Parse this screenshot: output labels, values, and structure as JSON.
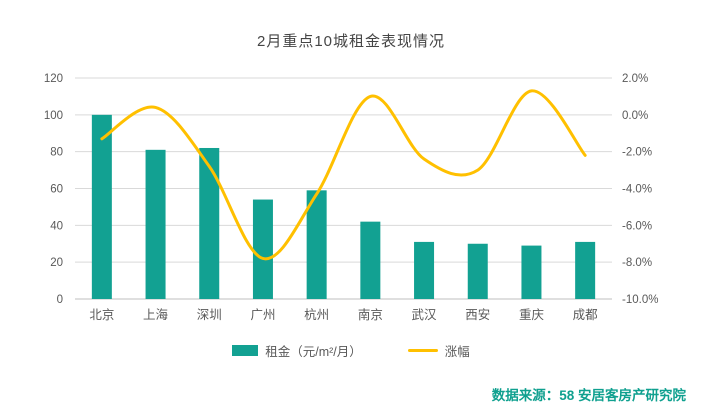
{
  "title": "2月重点10城租金表现情况",
  "legend": {
    "bar_label": "租金（元/m²/月）",
    "line_label": "涨幅"
  },
  "footer": {
    "source": "数据来源：58 安居客房产研究院"
  },
  "colors": {
    "bar": "#12A192",
    "line": "#FFC000",
    "grid": "#D9D9D9",
    "axis_line": "#BFBFBF",
    "tick_text": "#595959",
    "title_text": "#454545",
    "source_text": "#0FA08F"
  },
  "chart_data": {
    "type": "bar",
    "subtype": "combo-bar-line",
    "title": "2月重点10城租金表现情况",
    "categories": [
      "北京",
      "上海",
      "深圳",
      "广州",
      "杭州",
      "南京",
      "武汉",
      "西安",
      "重庆",
      "成都"
    ],
    "series": [
      {
        "name": "租金（元/m²/月）",
        "type": "bar",
        "axis": "left",
        "values": [
          100,
          81,
          82,
          54,
          59,
          42,
          31,
          30,
          29,
          31
        ]
      },
      {
        "name": "涨幅",
        "type": "line",
        "axis": "right",
        "values": [
          -1.3,
          0.4,
          -2.8,
          -7.8,
          -4.3,
          1.0,
          -2.4,
          -3.0,
          1.3,
          -2.2
        ]
      }
    ],
    "left_axis": {
      "min": 0,
      "max": 120,
      "step": 20,
      "ticks": [
        "0",
        "20",
        "40",
        "60",
        "80",
        "100",
        "120"
      ]
    },
    "right_axis": {
      "min": -10,
      "max": 2,
      "step": 2,
      "format": "percent",
      "ticks": [
        "-10.0%",
        "-8.0%",
        "-6.0%",
        "-4.0%",
        "-2.0%",
        "0.0%",
        "2.0%"
      ]
    },
    "grid": true,
    "legend_position": "bottom"
  }
}
